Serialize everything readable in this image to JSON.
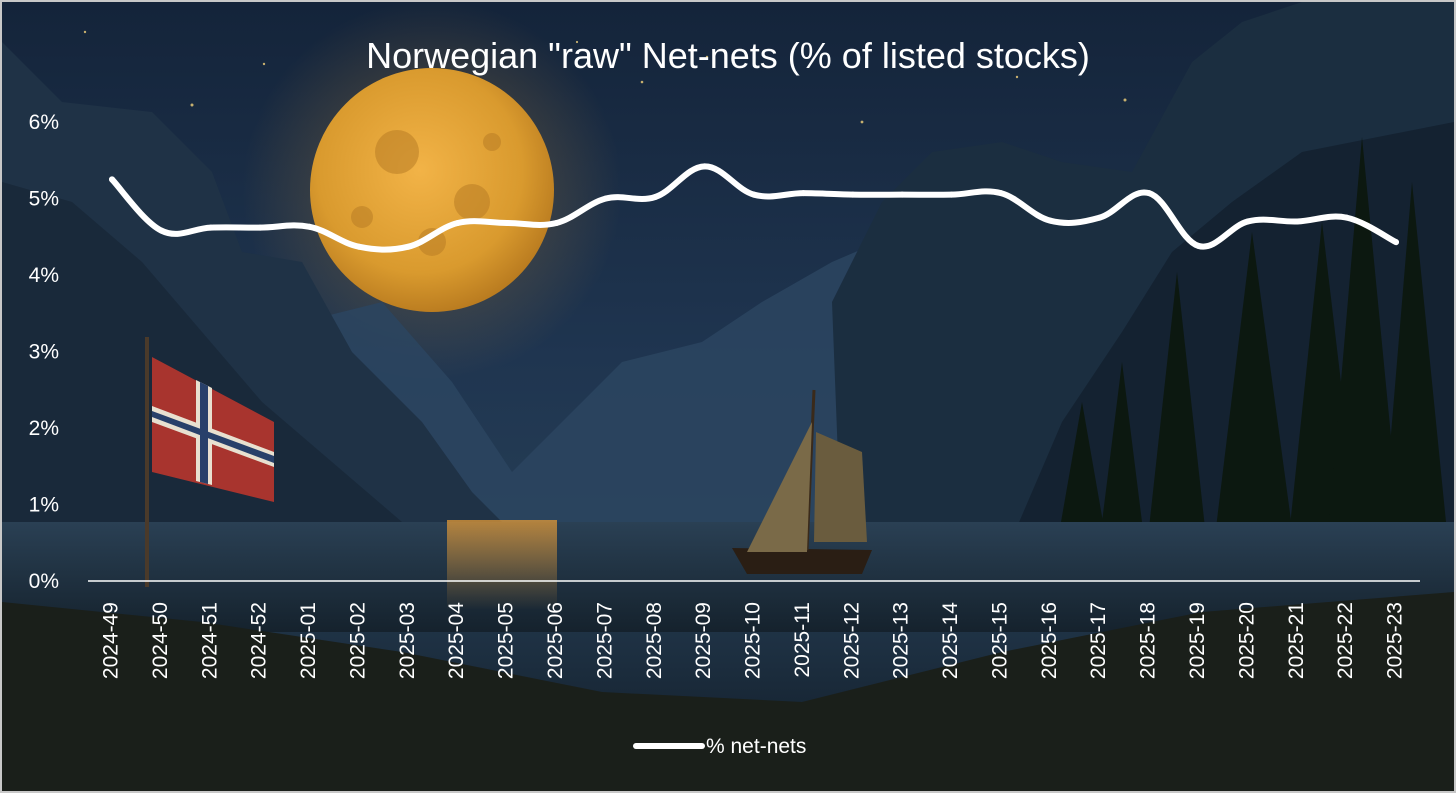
{
  "chart_data": {
    "type": "line",
    "title": "Norwegian \"raw\" Net-nets (% of listed stocks)",
    "xlabel": "",
    "ylabel": "",
    "categories": [
      "2024-49",
      "2024-50",
      "2024-51",
      "2024-52",
      "2025-01",
      "2025-02",
      "2025-03",
      "2025-04",
      "2025-05",
      "2025-06",
      "2025-07",
      "2025-08",
      "2025-09",
      "2025-10",
      "2025-11",
      "2025-12",
      "2025-13",
      "2025-14",
      "2025-15",
      "2025-16",
      "2025-17",
      "2025-18",
      "2025-19",
      "2025-20",
      "2025-21",
      "2025-22",
      "2025-23"
    ],
    "series": [
      {
        "name": "% net-nets",
        "color": "#ffffff",
        "values": [
          5.25,
          4.58,
          4.62,
          4.62,
          4.63,
          4.37,
          4.37,
          4.68,
          4.68,
          4.68,
          5.0,
          5.02,
          5.42,
          5.05,
          5.07,
          5.05,
          5.05,
          5.05,
          5.07,
          4.71,
          4.75,
          5.07,
          4.38,
          4.7,
          4.7,
          4.75,
          4.43
        ]
      }
    ],
    "ylim": [
      0,
      6
    ],
    "yticks": [
      "0%",
      "1%",
      "2%",
      "3%",
      "4%",
      "5%",
      "6%"
    ],
    "grid": false,
    "legend_position": "bottom",
    "smooth": true
  }
}
